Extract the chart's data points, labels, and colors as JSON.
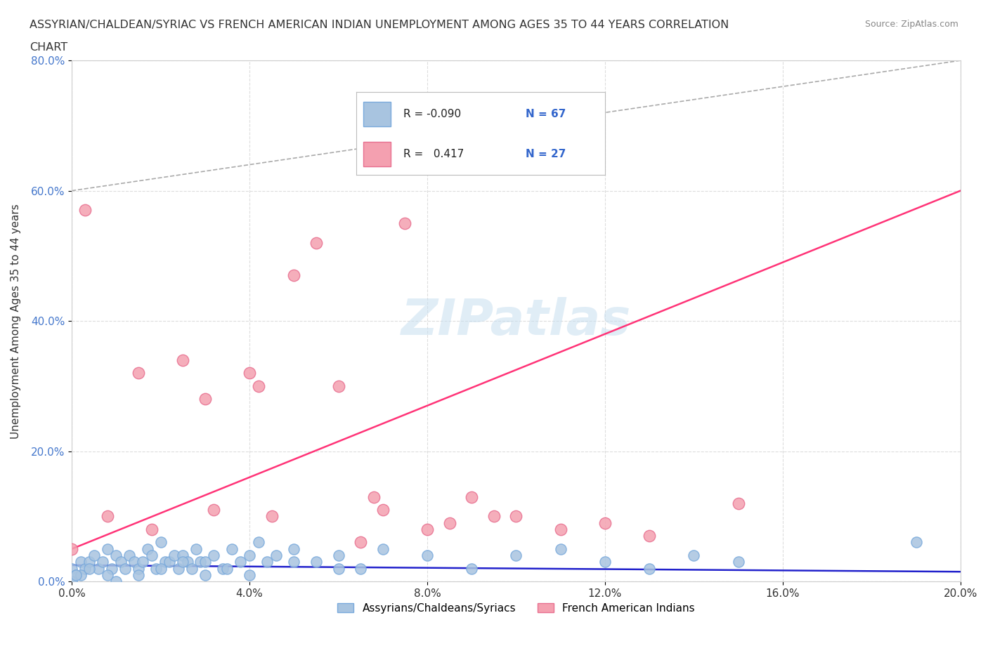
{
  "title_line1": "ASSYRIAN/CHALDEAN/SYRIAC VS FRENCH AMERICAN INDIAN UNEMPLOYMENT AMONG AGES 35 TO 44 YEARS CORRELATION",
  "title_line2": "CHART",
  "source": "Source: ZipAtlas.com",
  "ylabel": "Unemployment Among Ages 35 to 44 years",
  "xlim": [
    0.0,
    0.2
  ],
  "ylim": [
    0.0,
    0.8
  ],
  "xticks": [
    0.0,
    0.04,
    0.08,
    0.12,
    0.16,
    0.2
  ],
  "yticks": [
    0.0,
    0.2,
    0.4,
    0.6,
    0.8
  ],
  "xtick_labels": [
    "0.0%",
    "4.0%",
    "8.0%",
    "12.0%",
    "16.0%",
    "20.0%"
  ],
  "ytick_labels": [
    "0.0%",
    "20.0%",
    "40.0%",
    "60.0%",
    "80.0%"
  ],
  "blue_color": "#a8c4e0",
  "pink_color": "#f4a0b0",
  "blue_edge": "#7aaadc",
  "pink_edge": "#e87090",
  "trend_blue_color": "#2222cc",
  "trend_pink_color": "#ff3377",
  "watermark": "ZIPatlas",
  "legend_label1": "Assyrians/Chaldeans/Syriacs",
  "legend_label2": "French American Indians",
  "background_color": "#ffffff",
  "grid_color": "#dddddd",
  "blue_x": [
    0.0,
    0.001,
    0.002,
    0.003,
    0.004,
    0.005,
    0.006,
    0.007,
    0.008,
    0.009,
    0.01,
    0.011,
    0.012,
    0.013,
    0.014,
    0.015,
    0.016,
    0.017,
    0.018,
    0.019,
    0.02,
    0.021,
    0.022,
    0.023,
    0.024,
    0.025,
    0.026,
    0.027,
    0.028,
    0.029,
    0.03,
    0.032,
    0.034,
    0.036,
    0.038,
    0.04,
    0.042,
    0.044,
    0.046,
    0.05,
    0.055,
    0.06,
    0.065,
    0.07,
    0.08,
    0.09,
    0.1,
    0.11,
    0.12,
    0.13,
    0.14,
    0.15,
    0.0,
    0.002,
    0.004,
    0.008,
    0.01,
    0.015,
    0.02,
    0.025,
    0.03,
    0.035,
    0.04,
    0.05,
    0.06,
    0.19,
    0.001
  ],
  "blue_y": [
    0.02,
    0.01,
    0.03,
    0.02,
    0.03,
    0.04,
    0.02,
    0.03,
    0.05,
    0.02,
    0.04,
    0.03,
    0.02,
    0.04,
    0.03,
    0.02,
    0.03,
    0.05,
    0.04,
    0.02,
    0.06,
    0.03,
    0.03,
    0.04,
    0.02,
    0.04,
    0.03,
    0.02,
    0.05,
    0.03,
    0.03,
    0.04,
    0.02,
    0.05,
    0.03,
    0.04,
    0.06,
    0.03,
    0.04,
    0.05,
    0.03,
    0.04,
    0.02,
    0.05,
    0.04,
    0.02,
    0.04,
    0.05,
    0.03,
    0.02,
    0.04,
    0.03,
    0.0,
    0.01,
    0.02,
    0.01,
    0.0,
    0.01,
    0.02,
    0.03,
    0.01,
    0.02,
    0.01,
    0.03,
    0.02,
    0.06,
    0.01
  ],
  "pink_x": [
    0.0,
    0.003,
    0.008,
    0.015,
    0.018,
    0.025,
    0.03,
    0.032,
    0.04,
    0.042,
    0.045,
    0.05,
    0.055,
    0.06,
    0.065,
    0.068,
    0.07,
    0.075,
    0.08,
    0.085,
    0.09,
    0.095,
    0.1,
    0.11,
    0.12,
    0.13,
    0.15
  ],
  "pink_y": [
    0.05,
    0.57,
    0.1,
    0.32,
    0.08,
    0.34,
    0.28,
    0.11,
    0.32,
    0.3,
    0.1,
    0.47,
    0.52,
    0.3,
    0.06,
    0.13,
    0.11,
    0.55,
    0.08,
    0.09,
    0.13,
    0.1,
    0.1,
    0.08,
    0.09,
    0.07,
    0.12
  ],
  "blue_trend_x": [
    0.0,
    0.2
  ],
  "blue_trend_y": [
    0.025,
    0.015
  ],
  "pink_trend_x": [
    0.0,
    0.2
  ],
  "pink_trend_y": [
    0.05,
    0.6
  ],
  "ref_line_x": [
    0.0,
    0.2
  ],
  "ref_line_y": [
    0.6,
    0.8
  ]
}
